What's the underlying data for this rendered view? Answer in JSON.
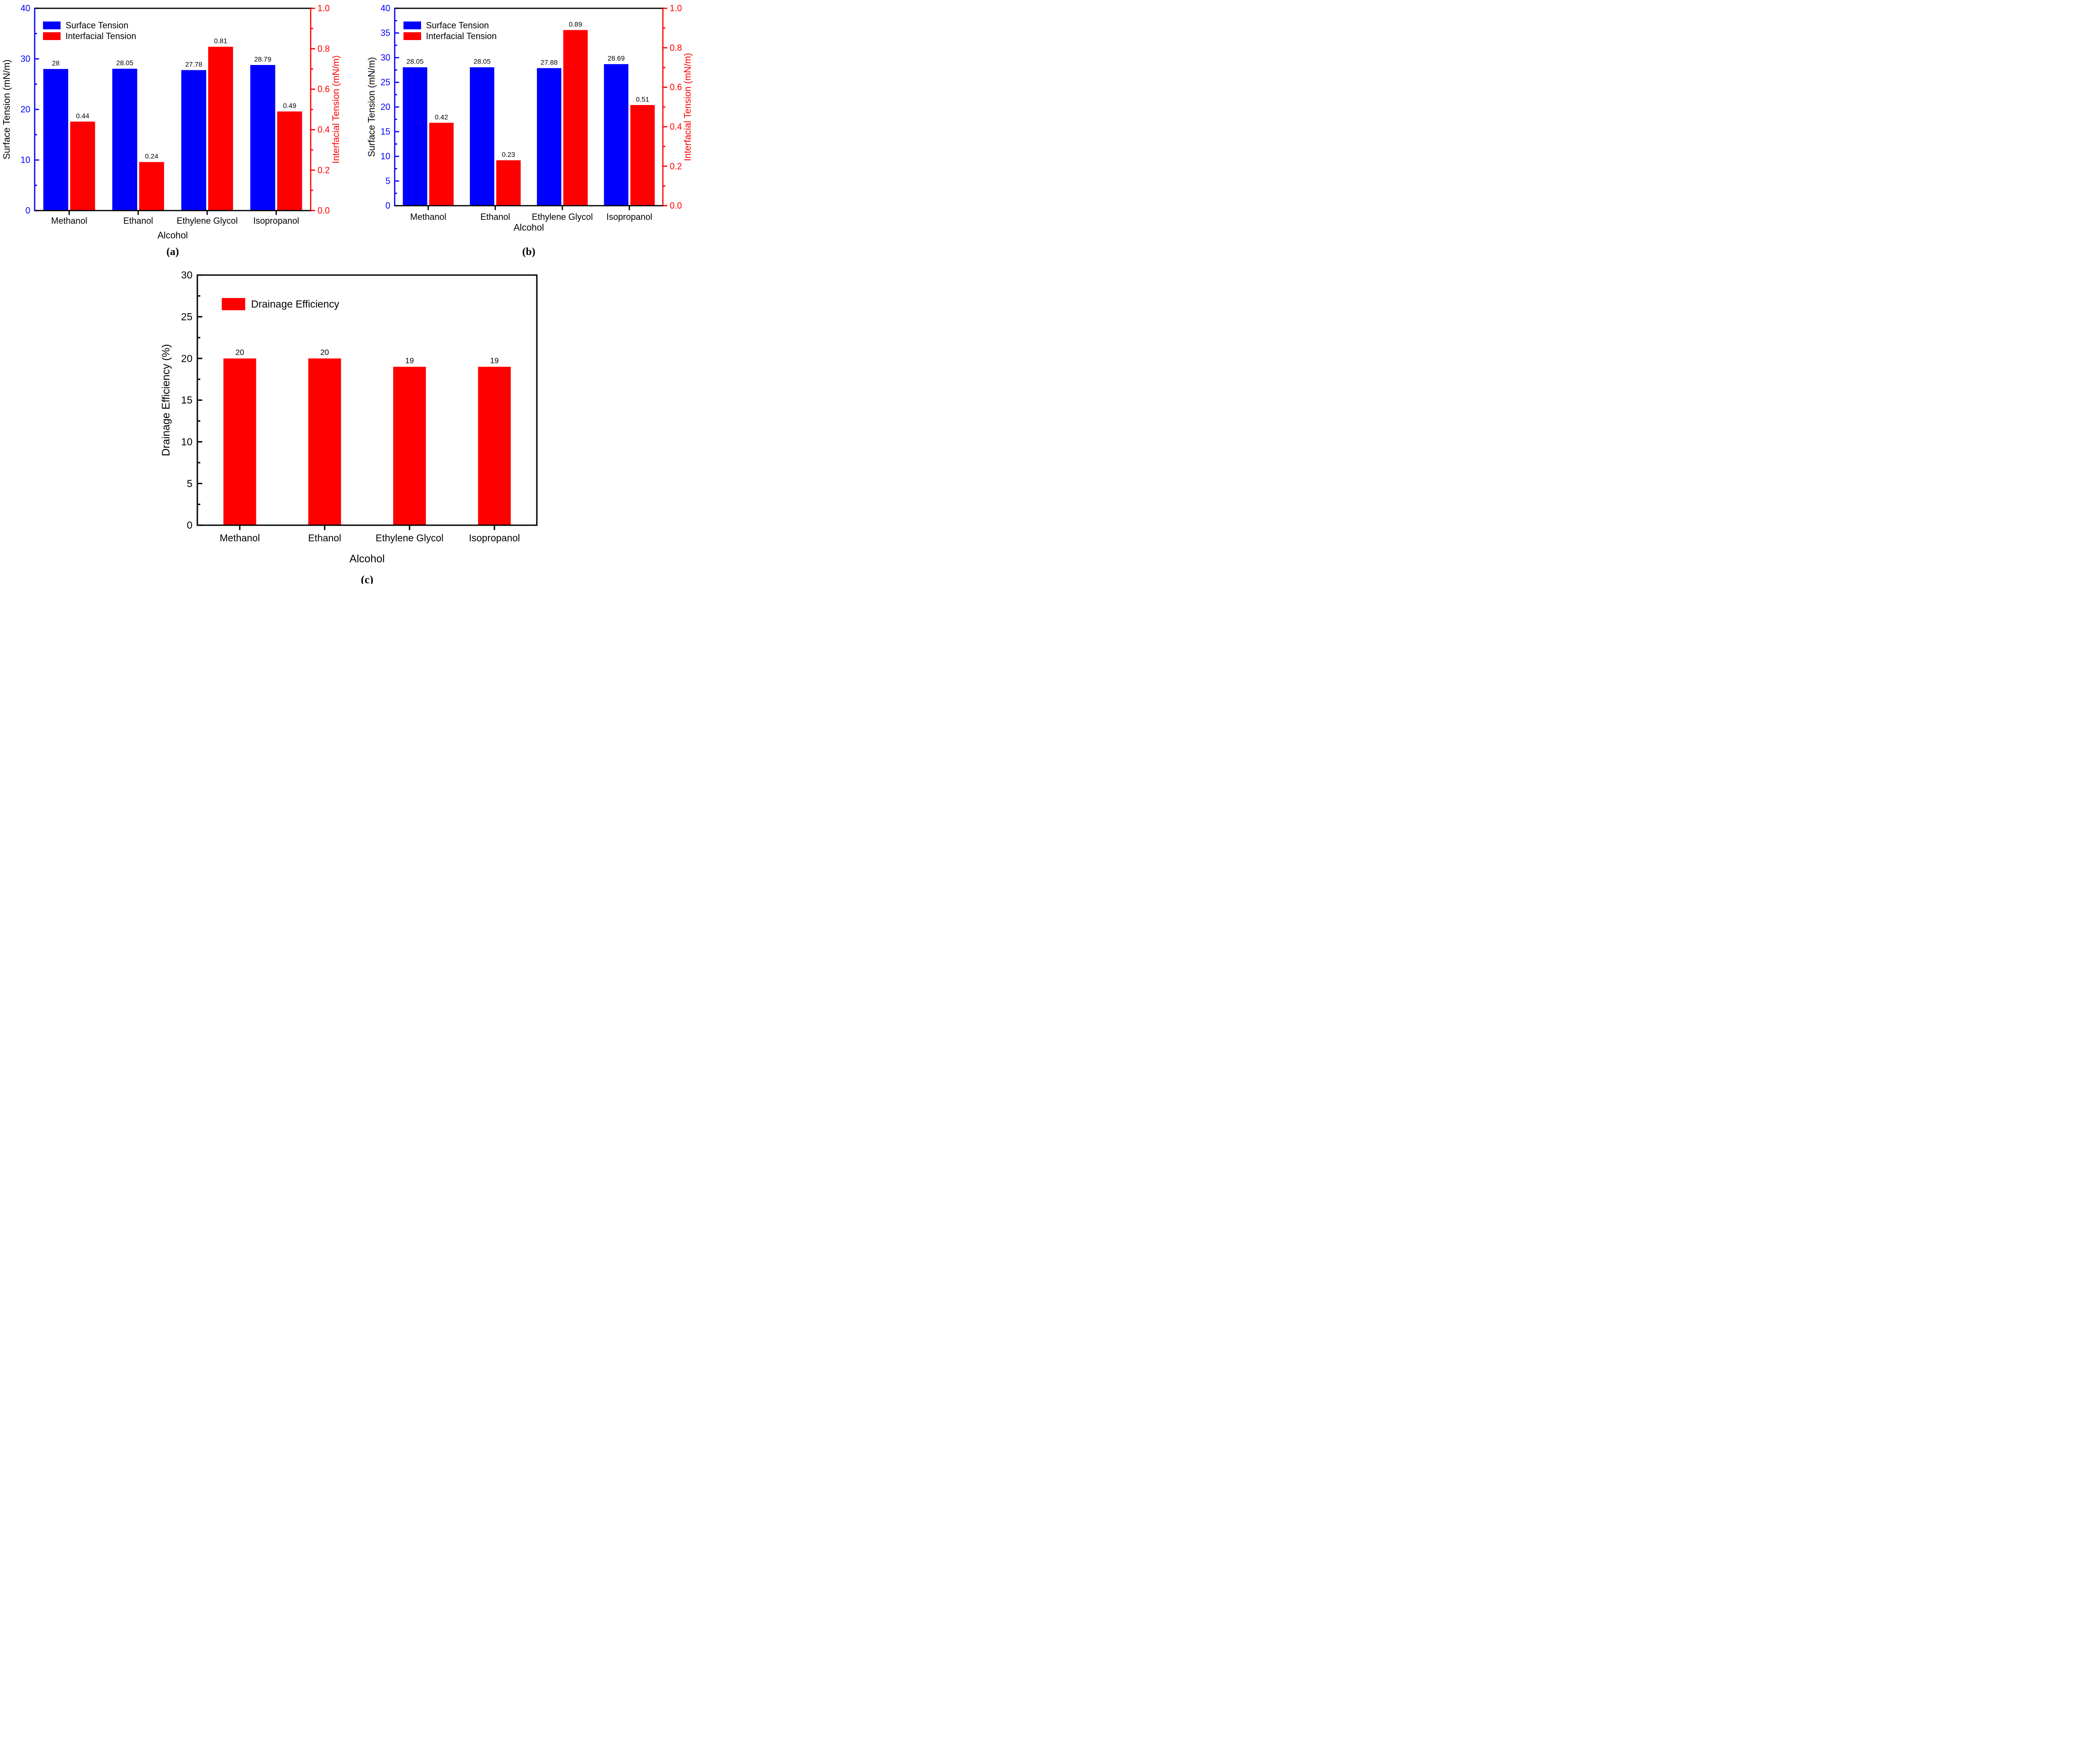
{
  "figure": {
    "background": "#FFFFFF",
    "panel_labels": [
      "(a)",
      "(b)",
      "(c)"
    ]
  },
  "colors": {
    "surface_tension": "#0000FF",
    "interfacial_tension": "#FF0000",
    "drainage_efficiency": "#FF0000",
    "axis_black": "#000000"
  },
  "chart_data": [
    {
      "id": "a",
      "type": "bar",
      "panel_label": "(a)",
      "title": "",
      "xlabel": "Alcohol",
      "ylabel_left": "Surface Tension (mN/m)",
      "ylabel_right": "Interfacial Tension (mN/m)",
      "categories": [
        "Methanol",
        "Ethanol",
        "Ethylene Glycol",
        "Isopropanol"
      ],
      "axes": {
        "left": {
          "min": 0,
          "max": 40,
          "major_step": 10,
          "minor_step": 5,
          "tick_labels": [
            "0",
            "10",
            "20",
            "30",
            "40"
          ],
          "color": "#0000FF",
          "title_color": "#000000"
        },
        "right": {
          "min": 0,
          "max": 1,
          "major_step": 0.2,
          "minor_step": 0.1,
          "tick_labels": [
            "0.0",
            "0.2",
            "0.4",
            "0.6",
            "0.8",
            "1.0"
          ],
          "color": "#FF0000",
          "title_color": "#FF0000"
        }
      },
      "series": [
        {
          "name": "Surface Tension",
          "axis": "left",
          "color": "#0000FF",
          "values": [
            28,
            28.05,
            27.78,
            28.79
          ],
          "value_labels": [
            "28",
            "28.05",
            "27.78",
            "28.79"
          ]
        },
        {
          "name": "Interfacial Tension",
          "axis": "right",
          "color": "#FF0000",
          "values": [
            0.44,
            0.24,
            0.81,
            0.49
          ],
          "value_labels": [
            "0.44",
            "0.24",
            "0.81",
            "0.49"
          ]
        }
      ],
      "legend": {
        "position": "top-left",
        "entries": [
          "Surface Tension",
          "Interfacial Tension"
        ]
      },
      "grid": false
    },
    {
      "id": "b",
      "type": "bar",
      "panel_label": "(b)",
      "title": "",
      "xlabel": "Alcohol",
      "ylabel_left": "Surface Tension (mN/m)",
      "ylabel_right": "Interfacial Tension (mN/m)",
      "categories": [
        "Methanol",
        "Ethanol",
        "Ethylene Glycol",
        "Isopropanol"
      ],
      "axes": {
        "left": {
          "min": 0,
          "max": 40,
          "major_step": 5,
          "minor_step": 2.5,
          "tick_labels": [
            "0",
            "5",
            "10",
            "15",
            "20",
            "25",
            "30",
            "35",
            "40"
          ],
          "color": "#0000FF",
          "title_color": "#000000"
        },
        "right": {
          "min": 0,
          "max": 1,
          "major_step": 0.2,
          "minor_step": 0.1,
          "tick_labels": [
            "0.0",
            "0.2",
            "0.4",
            "0.6",
            "0.8",
            "1.0"
          ],
          "color": "#FF0000",
          "title_color": "#FF0000"
        }
      },
      "series": [
        {
          "name": "Surface Tension",
          "axis": "left",
          "color": "#0000FF",
          "values": [
            28.05,
            28.05,
            27.88,
            28.69
          ],
          "value_labels": [
            "28.05",
            "28.05",
            "27.88",
            "28.69"
          ]
        },
        {
          "name": "Interfacial Tension",
          "axis": "right",
          "color": "#FF0000",
          "values": [
            0.42,
            0.23,
            0.89,
            0.51
          ],
          "value_labels": [
            "0.42",
            "0.23",
            "0.89",
            "0.51"
          ]
        }
      ],
      "legend": {
        "position": "top-left",
        "entries": [
          "Surface Tension",
          "Interfacial Tension"
        ]
      },
      "grid": false
    },
    {
      "id": "c",
      "type": "bar",
      "panel_label": "(c)",
      "title": "",
      "xlabel": "Alcohol",
      "ylabel_left": "Drainage Efficiency (%)",
      "categories": [
        "Methanol",
        "Ethanol",
        "Ethylene Glycol",
        "Isopropanol"
      ],
      "axes": {
        "left": {
          "min": 0,
          "max": 30,
          "major_step": 5,
          "minor_step": 2.5,
          "tick_labels": [
            "0",
            "5",
            "10",
            "15",
            "20",
            "25",
            "30"
          ],
          "color": "#000000",
          "title_color": "#000000"
        }
      },
      "series": [
        {
          "name": "Drainage Efficiency",
          "axis": "left",
          "color": "#FF0000",
          "values": [
            20,
            20,
            19,
            19
          ],
          "value_labels": [
            "20",
            "20",
            "19",
            "19"
          ]
        }
      ],
      "legend": {
        "position": "top-left",
        "entries": [
          "Drainage Efficiency"
        ]
      },
      "grid": false
    }
  ]
}
